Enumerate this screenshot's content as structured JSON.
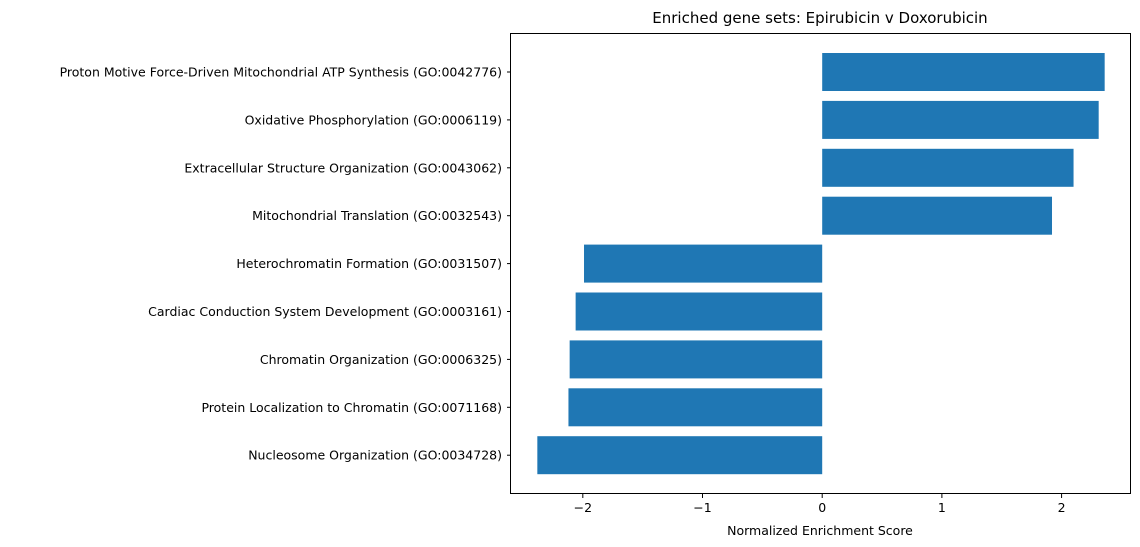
{
  "chart_data": {
    "type": "bar",
    "orientation": "horizontal",
    "title": "Enriched gene sets: Epirubicin v Doxorubicin",
    "xlabel": "Normalized Enrichment Score",
    "ylabel": "",
    "xlim": [
      -2.6,
      2.58
    ],
    "xticks": [
      -2,
      -1,
      0,
      1,
      2
    ],
    "xtick_labels": [
      "−2",
      "−1",
      "0",
      "1",
      "2"
    ],
    "grid": false,
    "bar_color": "#1f77b4",
    "categories": [
      "Proton Motive Force-Driven Mitochondrial ATP Synthesis (GO:0042776)",
      "Oxidative Phosphorylation (GO:0006119)",
      "Extracellular Structure Organization (GO:0043062)",
      "Mitochondrial Translation (GO:0032543)",
      "Heterochromatin Formation (GO:0031507)",
      "Cardiac Conduction System Development (GO:0003161)",
      "Chromatin Organization (GO:0006325)",
      "Protein Localization to Chromatin (GO:0071168)",
      "Nucleosome Organization (GO:0034728)"
    ],
    "values": [
      2.36,
      2.31,
      2.1,
      1.92,
      -1.99,
      -2.06,
      -2.11,
      -2.12,
      -2.38
    ]
  }
}
